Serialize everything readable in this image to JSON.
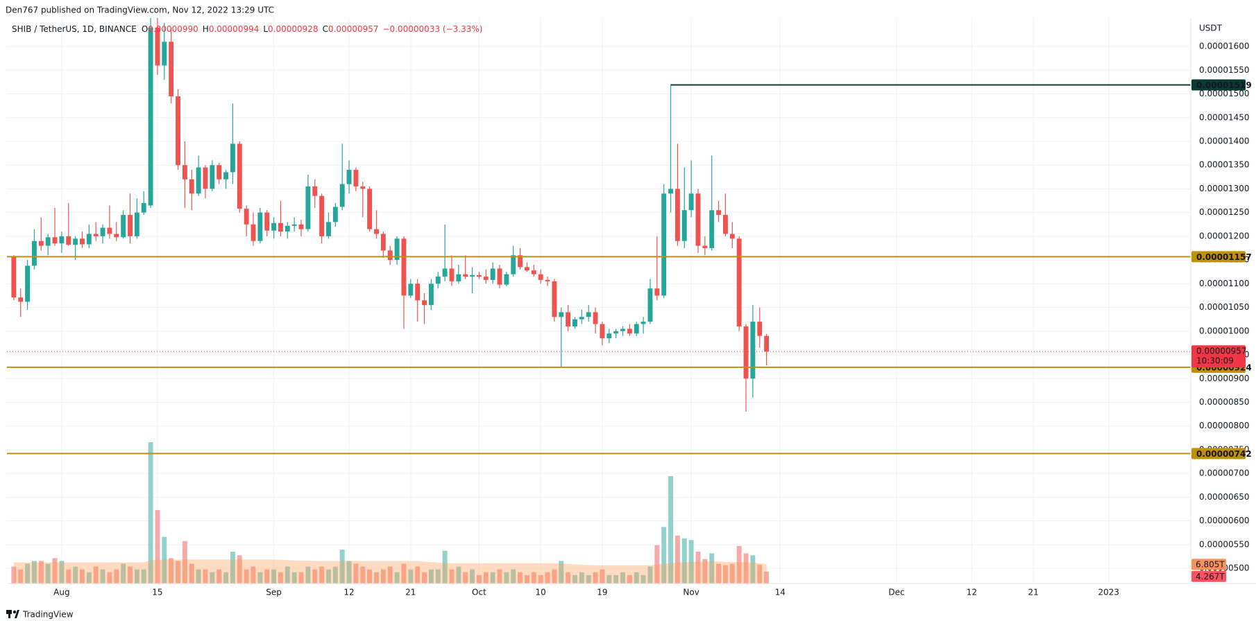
{
  "header": {
    "published": "Den767 published on TradingView.com, Nov 12, 2022 13:29 UTC",
    "footer": "TradingView"
  },
  "chart_data": {
    "type": "candlestick",
    "symbol": "SHIB / TetherUS, 1D, BINANCE",
    "ohlc": [
      {
        "key": "O",
        "text": "0.00000990"
      },
      {
        "key": "H",
        "text": "0.00000994"
      },
      {
        "key": "L",
        "text": "0.00000928"
      },
      {
        "key": "C",
        "text": "0.00000957"
      }
    ],
    "change": "−0.00000033 (−3.33%)",
    "y_unit": "USDT",
    "colors": {
      "up": "#26a69a",
      "down": "#ef5350",
      "volume_up": "#92d2cc",
      "volume_down": "#f7a9a7",
      "volume_ma": "#ff9a4d"
    },
    "grid": true,
    "xlim": [
      "2022-07-24",
      "2023-01-13"
    ],
    "ylim": [
      4.68e-06,
      1.66e-05
    ],
    "xticks": [
      {
        "value": "2022-08-01",
        "label": "Aug"
      },
      {
        "value": "2022-08-15",
        "label": "15"
      },
      {
        "value": "2022-09-01",
        "label": "Sep"
      },
      {
        "value": "2022-09-12",
        "label": "12"
      },
      {
        "value": "2022-09-21",
        "label": "21"
      },
      {
        "value": "2022-10-01",
        "label": "Oct"
      },
      {
        "value": "2022-10-10",
        "label": "10"
      },
      {
        "value": "2022-10-19",
        "label": "19"
      },
      {
        "value": "2022-11-01",
        "label": "Nov"
      },
      {
        "value": "2022-11-14",
        "label": "14"
      },
      {
        "value": "2022-12-01",
        "label": "Dec"
      },
      {
        "value": "2022-12-12",
        "label": "12"
      },
      {
        "value": "2022-12-21",
        "label": "21"
      },
      {
        "value": "2023-01-01",
        "label": "2023"
      }
    ],
    "yticks": [
      {
        "value": 5e-06,
        "label": "0.00000500"
      },
      {
        "value": 5.5e-06,
        "label": "0.00000550"
      },
      {
        "value": 6e-06,
        "label": "0.00000600"
      },
      {
        "value": 6.5e-06,
        "label": "0.00000650"
      },
      {
        "value": 7e-06,
        "label": "0.00000700"
      },
      {
        "value": 7.5e-06,
        "label": "0.00000750"
      },
      {
        "value": 8e-06,
        "label": "0.00000800"
      },
      {
        "value": 8.5e-06,
        "label": "0.00000850"
      },
      {
        "value": 9e-06,
        "label": "0.00000900"
      },
      {
        "value": 9.5e-06,
        "label": "0.00000950"
      },
      {
        "value": 1e-05,
        "label": "0.00001000"
      },
      {
        "value": 1.05e-05,
        "label": "0.00001050"
      },
      {
        "value": 1.1e-05,
        "label": "0.00001100"
      },
      {
        "value": 1.15e-05,
        "label": "0.00001150"
      },
      {
        "value": 1.2e-05,
        "label": "0.00001200"
      },
      {
        "value": 1.25e-05,
        "label": "0.00001250"
      },
      {
        "value": 1.3e-05,
        "label": "0.00001300"
      },
      {
        "value": 1.35e-05,
        "label": "0.00001350"
      },
      {
        "value": 1.4e-05,
        "label": "0.00001400"
      },
      {
        "value": 1.45e-05,
        "label": "0.00001450"
      },
      {
        "value": 1.5e-05,
        "label": "0.00001500"
      },
      {
        "value": 1.55e-05,
        "label": "0.00001550"
      },
      {
        "value": 1.6e-05,
        "label": "0.00001600"
      }
    ],
    "x": [
      "2022-07-25",
      "2022-07-26",
      "2022-07-27",
      "2022-07-28",
      "2022-07-29",
      "2022-07-30",
      "2022-07-31",
      "2022-08-01",
      "2022-08-02",
      "2022-08-03",
      "2022-08-04",
      "2022-08-05",
      "2022-08-06",
      "2022-08-07",
      "2022-08-08",
      "2022-08-09",
      "2022-08-10",
      "2022-08-11",
      "2022-08-12",
      "2022-08-13",
      "2022-08-14",
      "2022-08-15",
      "2022-08-16",
      "2022-08-17",
      "2022-08-18",
      "2022-08-19",
      "2022-08-20",
      "2022-08-21",
      "2022-08-22",
      "2022-08-23",
      "2022-08-24",
      "2022-08-25",
      "2022-08-26",
      "2022-08-27",
      "2022-08-28",
      "2022-08-29",
      "2022-08-30",
      "2022-08-31",
      "2022-09-01",
      "2022-09-02",
      "2022-09-03",
      "2022-09-04",
      "2022-09-05",
      "2022-09-06",
      "2022-09-07",
      "2022-09-08",
      "2022-09-09",
      "2022-09-10",
      "2022-09-11",
      "2022-09-12",
      "2022-09-13",
      "2022-09-14",
      "2022-09-15",
      "2022-09-16",
      "2022-09-17",
      "2022-09-18",
      "2022-09-19",
      "2022-09-20",
      "2022-09-21",
      "2022-09-22",
      "2022-09-23",
      "2022-09-24",
      "2022-09-25",
      "2022-09-26",
      "2022-09-27",
      "2022-09-28",
      "2022-09-29",
      "2022-09-30",
      "2022-10-01",
      "2022-10-02",
      "2022-10-03",
      "2022-10-04",
      "2022-10-05",
      "2022-10-06",
      "2022-10-07",
      "2022-10-08",
      "2022-10-09",
      "2022-10-10",
      "2022-10-11",
      "2022-10-12",
      "2022-10-13",
      "2022-10-14",
      "2022-10-15",
      "2022-10-16",
      "2022-10-17",
      "2022-10-18",
      "2022-10-19",
      "2022-10-20",
      "2022-10-21",
      "2022-10-22",
      "2022-10-23",
      "2022-10-24",
      "2022-10-25",
      "2022-10-26",
      "2022-10-27",
      "2022-10-28",
      "2022-10-29",
      "2022-10-30",
      "2022-10-31",
      "2022-11-01",
      "2022-11-02",
      "2022-11-03",
      "2022-11-04",
      "2022-11-05",
      "2022-11-06",
      "2022-11-07",
      "2022-11-08",
      "2022-11-09",
      "2022-11-10",
      "2022-11-11",
      "2022-11-12"
    ],
    "open": [
      1.156e-05,
      1.071e-05,
      1.062e-05,
      1.138e-05,
      1.19e-05,
      1.18e-05,
      1.198e-05,
      1.185e-05,
      1.2e-05,
      1.182e-05,
      1.195e-05,
      1.183e-05,
      1.205e-05,
      1.2e-05,
      1.218e-05,
      1.205e-05,
      1.198e-05,
      1.245e-05,
      1.2e-05,
      1.25e-05,
      1.265e-05,
      1.64e-05,
      1.56e-05,
      1.61e-05,
      1.495e-05,
      1.35e-05,
      1.32e-05,
      1.29e-05,
      1.345e-05,
      1.3e-05,
      1.35e-05,
      1.32e-05,
      1.335e-05,
      1.395e-05,
      1.258e-05,
      1.225e-05,
      1.19e-05,
      1.25e-05,
      1.212e-05,
      1.228e-05,
      1.21e-05,
      1.222e-05,
      1.225e-05,
      1.215e-05,
      1.305e-05,
      1.285e-05,
      1.2e-05,
      1.23e-05,
      1.262e-05,
      1.31e-05,
      1.34e-05,
      1.305e-05,
      1.3e-05,
      1.215e-05,
      1.205e-05,
      1.17e-05,
      1.15e-05,
      1.195e-05,
      1.075e-05,
      1.1e-05,
      1.065e-05,
      1.055e-05,
      1.1e-05,
      1.115e-05,
      1.132e-05,
      1.105e-05,
      1.12e-05,
      1.115e-05,
      1.118e-05,
      1.115e-05,
      1.108e-05,
      1.132e-05,
      1.098e-05,
      1.12e-05,
      1.16e-05,
      1.135e-05,
      1.128e-05,
      1.12e-05,
      1.108e-05,
      1.105e-05,
      1.03e-05,
      1.04e-05,
      1.01e-05,
      1.025e-05,
      1.03e-05,
      1.04e-05,
      1.015e-05,
      9.85e-06,
      9.95e-06,
      1e-05,
      1.005e-05,
      9.95e-06,
      1.015e-05,
      1.02e-05,
      1.09e-05,
      1.075e-05,
      1.29e-05,
      1.3e-05,
      1.19e-05,
      1.255e-05,
      1.29e-05,
      1.18e-05,
      1.175e-05,
      1.255e-05,
      1.245e-05,
      1.205e-05,
      1.195e-05,
      1.01e-05,
      9e-06,
      1.02e-05,
      9.9e-06
    ],
    "high": [
      1.16e-05,
      1.09e-05,
      1.15e-05,
      1.215e-05,
      1.24e-05,
      1.205e-05,
      1.26e-05,
      1.21e-05,
      1.27e-05,
      1.2e-05,
      1.21e-05,
      1.225e-05,
      1.23e-05,
      1.225e-05,
      1.265e-05,
      1.23e-05,
      1.255e-05,
      1.29e-05,
      1.28e-05,
      1.295e-05,
      1.69e-05,
      1.7e-05,
      1.65e-05,
      1.64e-05,
      1.51e-05,
      1.4e-05,
      1.34e-05,
      1.37e-05,
      1.35e-05,
      1.36e-05,
      1.355e-05,
      1.34e-05,
      1.48e-05,
      1.4e-05,
      1.265e-05,
      1.25e-05,
      1.26e-05,
      1.255e-05,
      1.24e-05,
      1.275e-05,
      1.23e-05,
      1.24e-05,
      1.235e-05,
      1.33e-05,
      1.32e-05,
      1.29e-05,
      1.25e-05,
      1.27e-05,
      1.395e-05,
      1.36e-05,
      1.345e-05,
      1.315e-05,
      1.305e-05,
      1.255e-05,
      1.21e-05,
      1.18e-05,
      1.2e-05,
      1.2e-05,
      1.11e-05,
      1.11e-05,
      1.08e-05,
      1.11e-05,
      1.125e-05,
      1.225e-05,
      1.16e-05,
      1.14e-05,
      1.16e-05,
      1.135e-05,
      1.125e-05,
      1.13e-05,
      1.145e-05,
      1.14e-05,
      1.125e-05,
      1.18e-05,
      1.175e-05,
      1.145e-05,
      1.14e-05,
      1.13e-05,
      1.115e-05,
      1.11e-05,
      1.05e-05,
      1.055e-05,
      1.03e-05,
      1.045e-05,
      1.055e-05,
      1.05e-05,
      1.02e-05,
      1.005e-05,
      1.005e-05,
      1.01e-05,
      1.015e-05,
      1.02e-05,
      1.03e-05,
      1.11e-05,
      1.2e-05,
      1.31e-05,
      1.519e-05,
      1.395e-05,
      1.345e-05,
      1.36e-05,
      1.3e-05,
      1.2e-05,
      1.37e-05,
      1.275e-05,
      1.29e-05,
      1.23e-05,
      1.2e-05,
      1.015e-05,
      1.055e-05,
      1.05e-05,
      9.94e-06
    ],
    "low": [
      1.065e-05,
      1.03e-05,
      1.045e-05,
      1.13e-05,
      1.17e-05,
      1.16e-05,
      1.18e-05,
      1.165e-05,
      1.18e-05,
      1.15e-05,
      1.175e-05,
      1.175e-05,
      1.19e-05,
      1.185e-05,
      1.195e-05,
      1.19e-05,
      1.195e-05,
      1.185e-05,
      1.195e-05,
      1.245e-05,
      1.26e-05,
      1.54e-05,
      1.53e-05,
      1.48e-05,
      1.34e-05,
      1.26e-05,
      1.255e-05,
      1.285e-05,
      1.28e-05,
      1.295e-05,
      1.31e-05,
      1.3e-05,
      1.31e-05,
      1.25e-05,
      1.2e-05,
      1.18e-05,
      1.185e-05,
      1.2e-05,
      1.195e-05,
      1.2e-05,
      1.195e-05,
      1.21e-05,
      1.2e-05,
      1.21e-05,
      1.26e-05,
      1.185e-05,
      1.195e-05,
      1.22e-05,
      1.255e-05,
      1.29e-05,
      1.295e-05,
      1.24e-05,
      1.21e-05,
      1.195e-05,
      1.155e-05,
      1.14e-05,
      1.14e-05,
      1.005e-05,
      1.07e-05,
      1.02e-05,
      1.015e-05,
      1.045e-05,
      1.09e-05,
      1.105e-05,
      1.095e-05,
      1.1e-05,
      1.11e-05,
      1.08e-05,
      1.11e-05,
      1.1e-05,
      1.1e-05,
      1.09e-05,
      1.095e-05,
      1.115e-05,
      1.13e-05,
      1.125e-05,
      1.115e-05,
      1.1e-05,
      1.095e-05,
      1.02e-05,
      9.25e-06,
      1e-05,
      1.005e-05,
      1.015e-05,
      1.02e-05,
      9.95e-06,
      9.7e-06,
      9.75e-06,
      9.85e-06,
      9.9e-06,
      9.9e-06,
      9.9e-06,
      9.95e-06,
      1.015e-05,
      1.065e-05,
      1.07e-05,
      1.25e-05,
      1.18e-05,
      1.175e-05,
      1.24e-05,
      1.165e-05,
      1.16e-05,
      1.17e-05,
      1.23e-05,
      1.2e-05,
      1.175e-05,
      1e-05,
      8.3e-06,
      8.6e-06,
      9.65e-06,
      9.28e-06
    ],
    "close": [
      1.071e-05,
      1.062e-05,
      1.138e-05,
      1.19e-05,
      1.18e-05,
      1.198e-05,
      1.185e-05,
      1.2e-05,
      1.182e-05,
      1.195e-05,
      1.183e-05,
      1.205e-05,
      1.2e-05,
      1.218e-05,
      1.205e-05,
      1.198e-05,
      1.245e-05,
      1.2e-05,
      1.25e-05,
      1.27e-05,
      1.64e-05,
      1.56e-05,
      1.61e-05,
      1.495e-05,
      1.35e-05,
      1.32e-05,
      1.29e-05,
      1.345e-05,
      1.3e-05,
      1.35e-05,
      1.32e-05,
      1.335e-05,
      1.395e-05,
      1.258e-05,
      1.225e-05,
      1.19e-05,
      1.25e-05,
      1.212e-05,
      1.228e-05,
      1.21e-05,
      1.222e-05,
      1.225e-05,
      1.215e-05,
      1.305e-05,
      1.285e-05,
      1.2e-05,
      1.23e-05,
      1.262e-05,
      1.31e-05,
      1.34e-05,
      1.305e-05,
      1.3e-05,
      1.215e-05,
      1.205e-05,
      1.17e-05,
      1.15e-05,
      1.195e-05,
      1.075e-05,
      1.1e-05,
      1.065e-05,
      1.055e-05,
      1.1e-05,
      1.115e-05,
      1.132e-05,
      1.105e-05,
      1.12e-05,
      1.115e-05,
      1.118e-05,
      1.115e-05,
      1.108e-05,
      1.132e-05,
      1.098e-05,
      1.12e-05,
      1.16e-05,
      1.135e-05,
      1.128e-05,
      1.12e-05,
      1.108e-05,
      1.105e-05,
      1.03e-05,
      1.04e-05,
      1.01e-05,
      1.025e-05,
      1.03e-05,
      1.04e-05,
      1.015e-05,
      9.85e-06,
      9.95e-06,
      1e-05,
      1.005e-05,
      9.95e-06,
      1.015e-05,
      1.02e-05,
      1.09e-05,
      1.075e-05,
      1.29e-05,
      1.3e-05,
      1.19e-05,
      1.255e-05,
      1.29e-05,
      1.18e-05,
      1.175e-05,
      1.255e-05,
      1.245e-05,
      1.205e-05,
      1.195e-05,
      1.01e-05,
      9e-06,
      1.02e-05,
      9.9e-06,
      9.57e-06
    ],
    "volume": [
      6,
      5,
      7,
      8,
      8,
      7,
      9,
      8,
      5,
      6,
      5,
      4,
      6,
      5,
      4,
      5,
      7,
      6,
      5,
      5,
      50,
      26,
      16.5,
      9,
      8,
      15,
      7,
      5,
      5,
      4,
      5,
      4,
      11.3,
      10,
      5,
      6,
      4,
      5,
      5,
      4,
      6,
      4,
      4,
      6,
      5,
      6,
      5,
      6,
      12,
      8,
      7,
      6,
      5,
      4,
      5,
      6,
      4,
      7,
      5,
      6,
      4,
      5,
      5,
      11.6,
      5,
      6,
      4,
      5,
      3,
      4,
      4,
      5,
      4,
      5,
      4,
      3,
      4,
      3,
      4,
      5,
      8,
      4,
      3,
      4,
      3,
      4,
      5,
      3,
      3,
      4,
      3,
      4,
      3,
      6,
      13.6,
      20,
      38,
      17,
      16,
      15.4,
      11.3,
      8.7,
      10.7,
      7,
      6.5,
      7,
      13.3,
      10.7,
      10,
      6.7,
      4.267
    ],
    "volume_ma": [
      7.5,
      7.5,
      7.5,
      7.5,
      7.5,
      7.5,
      7.5,
      7.5,
      7.5,
      7.5,
      7.5,
      7.5,
      7.5,
      7.5,
      7.5,
      7.5,
      7.5,
      7.5,
      7.5,
      7.5,
      8.2,
      8.4,
      8.5,
      8.5,
      8.5,
      8.5,
      8.5,
      8.5,
      8.5,
      8.5,
      8.5,
      8.5,
      8.5,
      8.5,
      8.5,
      8.5,
      8.5,
      8.5,
      8.5,
      8.4,
      8.3,
      8.2,
      8.1,
      8.1,
      8,
      8,
      8,
      8,
      8,
      8,
      8,
      8,
      8,
      8,
      8,
      8,
      8,
      8,
      8,
      8,
      7.8,
      7.6,
      7.4,
      7.3,
      7.2,
      7.2,
      7.2,
      7.2,
      7.2,
      7.2,
      7.2,
      7.2,
      7.2,
      7.2,
      7.2,
      7.2,
      7.2,
      7.2,
      7.2,
      7.2,
      7.1,
      7,
      6.8,
      6.7,
      6.6,
      6.5,
      6.5,
      6.5,
      6.5,
      6.5,
      6.5,
      6.5,
      6.5,
      6.5,
      6.8,
      7,
      7.2,
      7.4,
      7.5,
      7.6,
      7.7,
      7.8,
      7.8,
      7.8,
      7.7,
      7.6,
      7.6,
      7.5,
      7.4,
      7.2,
      6.805
    ],
    "volume_label": "4.267T",
    "volume_ma_label": "6.805T",
    "last_price_label": "0.00000957",
    "countdown": "10:30:09",
    "levels": [
      {
        "value": 1.519e-05,
        "label": "0.00001519",
        "color": "#0c3b33",
        "from": "2022-10-29"
      },
      {
        "value": 1.157e-05,
        "label": "0.00001157",
        "color": "#bf9100"
      },
      {
        "value": 9.24e-06,
        "label": "0.00000924",
        "color": "#bf9100"
      },
      {
        "value": 7.42e-06,
        "label": "0.00000742",
        "color": "#bf9100"
      }
    ]
  }
}
